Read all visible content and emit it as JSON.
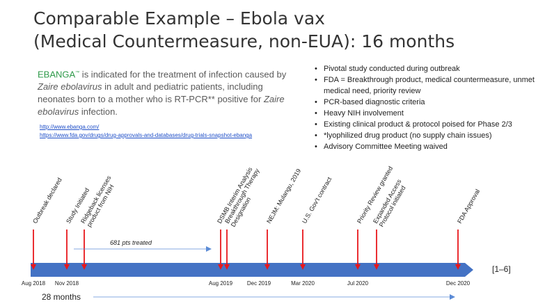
{
  "title": {
    "line1": "Comparable Example – Ebola vax",
    "line2": "(Medical Countermeasure, non-EUA): 16 months"
  },
  "description": {
    "brand": "EBANGA",
    "trademark": "™",
    "part1": " is indicated for the treatment of infection caused by ",
    "species1": "Zaire ebolavirus",
    "part2": " in adult and pediatric patients, including neonates born to a mother who is RT-PCR",
    "asterisks": "**",
    "part3": " positive for ",
    "species2": "Zaire ebolavirus",
    "part4": " infection."
  },
  "links": [
    "http://www.ebanga.com/",
    "https://www.fda.gov/drugs/drug-approvals-and-databases/drug-trials-snapshot-ebanga"
  ],
  "bullets": [
    "Pivotal study conducted during outbreak",
    "FDA = Breakthrough product, medical countermeasure, unmet medical need, priority review",
    "PCR-based diagnostic criteria",
    "Heavy NIH involvement",
    "Existing clinical product & protocol poised for Phase 2/3",
    "*lyophilized drug product (no supply chain issues)",
    "Advisory Committee Meeting waived"
  ],
  "events": [
    {
      "lines": [
        "Outbreak declared"
      ]
    },
    {
      "lines": [
        "Study Initiated"
      ]
    },
    {
      "lines": [
        "Ridgeback licenses",
        "product from NIH"
      ]
    },
    {
      "lines": [
        "DSMB Interim Analysis"
      ]
    },
    {
      "lines": [
        "Breakthrough Therapy",
        "Designation"
      ]
    },
    {
      "lines": [
        "NEJM: Mulangu, 2019"
      ]
    },
    {
      "lines": [
        "U.S. Gov't contract"
      ]
    },
    {
      "lines": [
        "Priority Review granted"
      ]
    },
    {
      "lines": [
        "Expanded Access",
        "Protocol initiated"
      ]
    },
    {
      "lines": [
        "FDA Approval"
      ]
    }
  ],
  "axis_labels": [
    "Aug 2018",
    "Nov 2018",
    "Aug 2019",
    "Dec 2019",
    "Mar 2020",
    "Jul 2020",
    "Dec 2020"
  ],
  "patients_label": "681 pts treated",
  "duration_label": "28 months",
  "references": "[1–6]",
  "colors": {
    "bar": "#4472c4",
    "marker": "#e8171b",
    "arrow": "#5b8bd6",
    "link": "#1f4fc8",
    "brand": "#2f9a4a"
  }
}
